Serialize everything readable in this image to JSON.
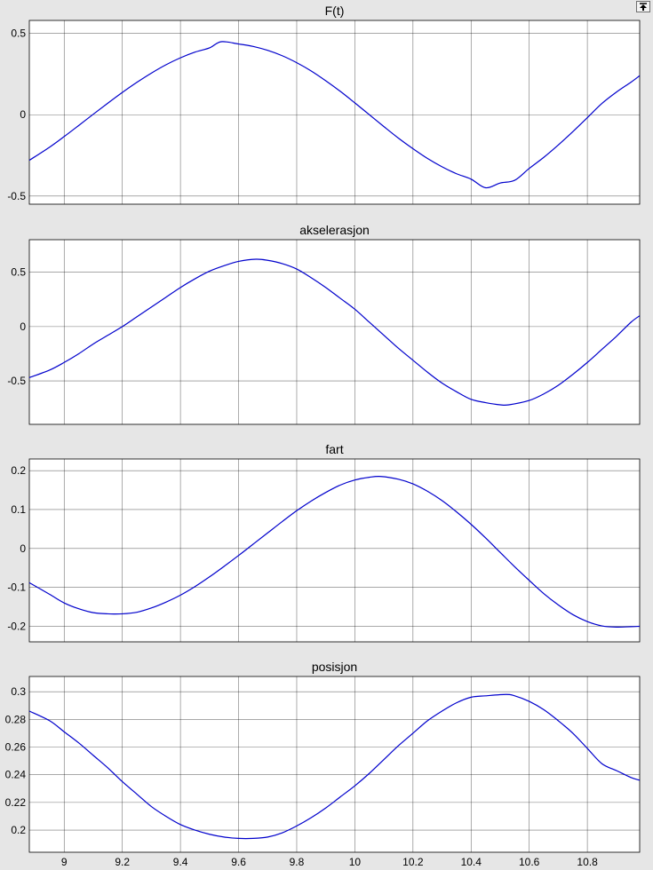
{
  "window": {
    "undock_button_icon": "undock-arrow-icon"
  },
  "colors": {
    "background": "#e6e6e6",
    "axes": "#ffffff",
    "line": "#0000cc",
    "grid": "#000000"
  },
  "chart_data": [
    {
      "type": "line",
      "title": "F(t)",
      "xlabel": "",
      "ylabel": "",
      "xlim": [
        8.88,
        10.98
      ],
      "ylim": [
        -0.55,
        0.58
      ],
      "grid": true,
      "y_ticks": [
        -0.5,
        0,
        0.5
      ],
      "y_tick_labels": [
        "-0.5",
        "0",
        "0.5"
      ],
      "x_ticks": [
        9,
        9.2,
        9.4,
        9.6,
        9.8,
        10,
        10.2,
        10.4,
        10.6,
        10.8
      ],
      "x_tick_labels": [],
      "series": [
        {
          "x": [
            8.88,
            8.95,
            9.0,
            9.05,
            9.1,
            9.15,
            9.2,
            9.25,
            9.3,
            9.35,
            9.4,
            9.45,
            9.5,
            9.54,
            9.6,
            9.65,
            9.7,
            9.75,
            9.8,
            9.85,
            9.9,
            9.95,
            10.0,
            10.05,
            10.1,
            10.15,
            10.2,
            10.25,
            10.3,
            10.35,
            10.4,
            10.45,
            10.5,
            10.55,
            10.6,
            10.65,
            10.7,
            10.75,
            10.8,
            10.85,
            10.9,
            10.95,
            10.98
          ],
          "y": [
            -0.28,
            -0.199,
            -0.134,
            -0.066,
            0.003,
            0.071,
            0.137,
            0.199,
            0.256,
            0.307,
            0.35,
            0.385,
            0.411,
            0.449,
            0.435,
            0.42,
            0.396,
            0.363,
            0.32,
            0.269,
            0.209,
            0.144,
            0.073,
            0.0,
            -0.073,
            -0.144,
            -0.209,
            -0.269,
            -0.32,
            -0.363,
            -0.396,
            -0.449,
            -0.42,
            -0.403,
            -0.33,
            -0.262,
            -0.186,
            -0.104,
            -0.018,
            0.069,
            0.139,
            0.2,
            0.24
          ]
        }
      ]
    },
    {
      "type": "line",
      "title": "akselerasjon",
      "xlabel": "",
      "ylabel": "",
      "xlim": [
        8.88,
        10.98
      ],
      "ylim": [
        -0.9,
        0.8
      ],
      "grid": true,
      "y_ticks": [
        -0.5,
        0,
        0.5
      ],
      "y_tick_labels": [
        "-0.5",
        "0",
        "0.5"
      ],
      "x_ticks": [
        9,
        9.2,
        9.4,
        9.6,
        9.8,
        10,
        10.2,
        10.4,
        10.6,
        10.8
      ],
      "x_tick_labels": [],
      "series": [
        {
          "x": [
            8.88,
            8.95,
            9.0,
            9.05,
            9.1,
            9.15,
            9.2,
            9.25,
            9.3,
            9.35,
            9.4,
            9.45,
            9.5,
            9.55,
            9.6,
            9.66,
            9.7,
            9.75,
            9.8,
            9.85,
            9.9,
            9.95,
            10.0,
            10.05,
            10.1,
            10.15,
            10.2,
            10.25,
            10.3,
            10.35,
            10.4,
            10.45,
            10.5,
            10.53,
            10.6,
            10.65,
            10.7,
            10.75,
            10.8,
            10.85,
            10.9,
            10.95,
            10.98
          ],
          "y": [
            -0.47,
            -0.4,
            -0.33,
            -0.25,
            -0.16,
            -0.08,
            0.0,
            0.09,
            0.18,
            0.27,
            0.36,
            0.44,
            0.51,
            0.56,
            0.6,
            0.62,
            0.61,
            0.58,
            0.53,
            0.45,
            0.36,
            0.26,
            0.16,
            0.04,
            -0.08,
            -0.2,
            -0.31,
            -0.42,
            -0.52,
            -0.6,
            -0.67,
            -0.7,
            -0.72,
            -0.72,
            -0.68,
            -0.62,
            -0.54,
            -0.44,
            -0.33,
            -0.21,
            -0.09,
            0.04,
            0.1
          ]
        }
      ]
    },
    {
      "type": "line",
      "title": "fart",
      "xlabel": "",
      "ylabel": "",
      "xlim": [
        8.88,
        10.98
      ],
      "ylim": [
        -0.24,
        0.23
      ],
      "grid": true,
      "y_ticks": [
        -0.2,
        -0.1,
        0,
        0.1,
        0.2
      ],
      "y_tick_labels": [
        "-0.2",
        "-0.1",
        "0",
        "0.1",
        "0.2"
      ],
      "x_ticks": [
        9,
        9.2,
        9.4,
        9.6,
        9.8,
        10,
        10.2,
        10.4,
        10.6,
        10.8
      ],
      "x_tick_labels": [],
      "series": [
        {
          "x": [
            8.88,
            8.95,
            9.0,
            9.05,
            9.1,
            9.15,
            9.2,
            9.25,
            9.3,
            9.35,
            9.4,
            9.45,
            9.5,
            9.55,
            9.6,
            9.65,
            9.7,
            9.75,
            9.8,
            9.85,
            9.9,
            9.95,
            10.0,
            10.05,
            10.09,
            10.15,
            10.2,
            10.25,
            10.3,
            10.35,
            10.4,
            10.45,
            10.5,
            10.55,
            10.6,
            10.65,
            10.7,
            10.75,
            10.8,
            10.85,
            10.9,
            10.95,
            10.98
          ],
          "y": [
            -0.088,
            -0.118,
            -0.14,
            -0.155,
            -0.165,
            -0.168,
            -0.168,
            -0.164,
            -0.153,
            -0.138,
            -0.12,
            -0.098,
            -0.073,
            -0.046,
            -0.018,
            0.011,
            0.04,
            0.069,
            0.097,
            0.122,
            0.144,
            0.163,
            0.176,
            0.183,
            0.185,
            0.178,
            0.166,
            0.147,
            0.123,
            0.094,
            0.062,
            0.027,
            -0.01,
            -0.047,
            -0.082,
            -0.116,
            -0.145,
            -0.17,
            -0.188,
            -0.199,
            -0.202,
            -0.201,
            -0.2
          ]
        }
      ]
    },
    {
      "type": "line",
      "title": "posisjon",
      "xlabel": "",
      "ylabel": "",
      "xlim": [
        8.88,
        10.98
      ],
      "ylim": [
        0.184,
        0.311
      ],
      "grid": true,
      "y_ticks": [
        0.2,
        0.22,
        0.24,
        0.26,
        0.28,
        0.3
      ],
      "y_tick_labels": [
        "0.2",
        "0.22",
        "0.24",
        "0.26",
        "0.28",
        "0.3"
      ],
      "x_ticks": [
        9,
        9.2,
        9.4,
        9.6,
        9.8,
        10,
        10.2,
        10.4,
        10.6,
        10.8
      ],
      "x_tick_labels": [
        "9",
        "9.2",
        "9.4",
        "9.6",
        "9.8",
        "10",
        "10.2",
        "10.4",
        "10.6",
        "10.8"
      ],
      "series": [
        {
          "x": [
            8.88,
            8.95,
            9.0,
            9.05,
            9.1,
            9.15,
            9.2,
            9.25,
            9.3,
            9.35,
            9.4,
            9.45,
            9.5,
            9.55,
            9.6,
            9.65,
            9.7,
            9.75,
            9.8,
            9.85,
            9.9,
            9.95,
            10.0,
            10.05,
            10.1,
            10.15,
            10.2,
            10.25,
            10.3,
            10.35,
            10.4,
            10.45,
            10.52,
            10.55,
            10.6,
            10.65,
            10.7,
            10.75,
            10.8,
            10.85,
            10.9,
            10.95,
            10.98
          ],
          "y": [
            0.286,
            0.279,
            0.271,
            0.263,
            0.254,
            0.245,
            0.235,
            0.226,
            0.217,
            0.21,
            0.204,
            0.2,
            0.197,
            0.195,
            0.194,
            0.194,
            0.195,
            0.198,
            0.203,
            0.209,
            0.216,
            0.224,
            0.232,
            0.241,
            0.251,
            0.261,
            0.27,
            0.279,
            0.286,
            0.292,
            0.296,
            0.297,
            0.298,
            0.297,
            0.293,
            0.287,
            0.279,
            0.27,
            0.259,
            0.248,
            0.243,
            0.238,
            0.236
          ]
        }
      ]
    }
  ]
}
